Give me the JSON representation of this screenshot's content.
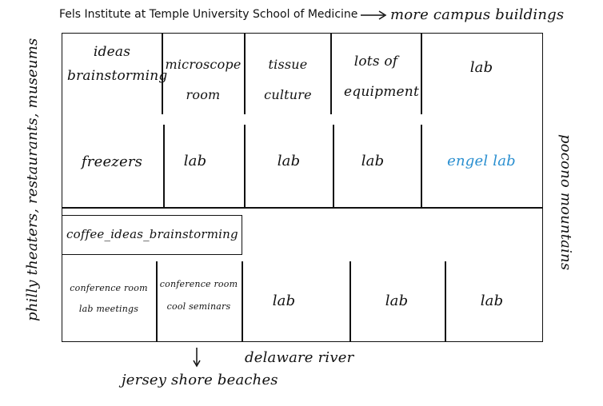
{
  "header": {
    "institute": "Fels Institute at Temple University School of Medicine",
    "campus": "more campus buildings"
  },
  "sides": {
    "left": "philly theaters, restaurants, museums",
    "right": "pocono mountains",
    "bottom_river": "delaware river",
    "bottom_shore": "jersey shore beaches"
  },
  "rooms": {
    "ideas": "ideas brainstorming",
    "microscope": "microscope room",
    "tissue": "tissue culture",
    "equipment": "lots of equipment",
    "lab_top_right": "lab",
    "freezers": "freezers",
    "lab_mid_1": "lab",
    "lab_mid_2": "lab",
    "lab_mid_3": "lab",
    "engel": "engel lab",
    "coffee": "coffee_ideas_brainstorming",
    "conf1_a": "conference room",
    "conf1_b": "lab meetings",
    "conf2_a": "conference room",
    "conf2_b": "cool seminars",
    "lab_bottom_1": "lab",
    "lab_bottom_2": "lab",
    "lab_bottom_3": "lab"
  },
  "colors": {
    "ink": "#111111",
    "engel_lab": "#2a8fd0"
  }
}
